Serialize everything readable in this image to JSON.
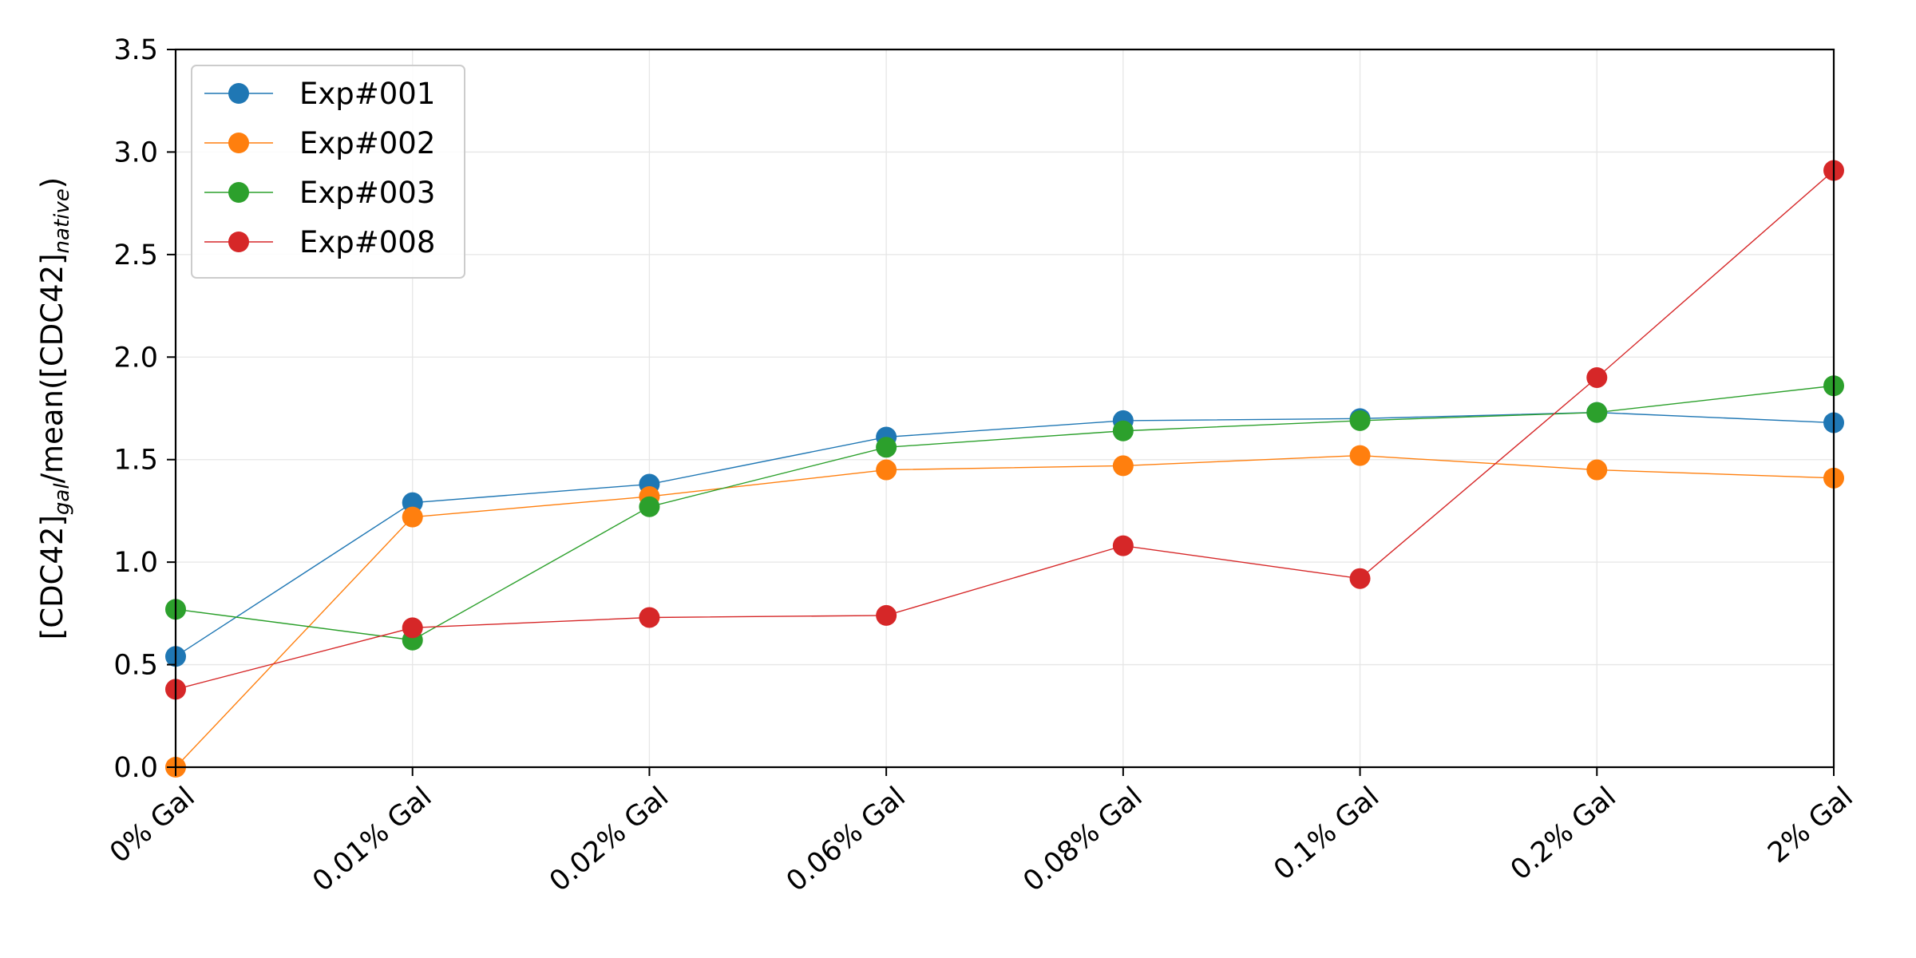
{
  "chart_data": {
    "type": "line",
    "title": "",
    "xlabel": "",
    "ylabel": "[CDC42]gal/mean([CDC42]native)",
    "ylabel_parts": {
      "p1": "[CDC42]",
      "s1": "gal",
      "p2": "/mean([CDC42]",
      "s2": "native",
      "p3": ")"
    },
    "categories": [
      "0% Gal",
      "0.01% Gal",
      "0.02% Gal",
      "0.06% Gal",
      "0.08% Gal",
      "0.1% Gal",
      "0.2% Gal",
      "2% Gal"
    ],
    "ylim": [
      0.0,
      3.5
    ],
    "yticks": [
      "0.0",
      "0.5",
      "1.0",
      "1.5",
      "2.0",
      "2.5",
      "3.0",
      "3.5"
    ],
    "grid": true,
    "legend_position": "top-left",
    "series": [
      {
        "name": "Exp#001",
        "color": "#1f77b4",
        "values": [
          0.54,
          1.29,
          1.38,
          1.61,
          1.69,
          1.7,
          1.73,
          1.68
        ]
      },
      {
        "name": "Exp#002",
        "color": "#ff7f0e",
        "values": [
          0.0,
          1.22,
          1.32,
          1.45,
          1.47,
          1.52,
          1.45,
          1.41
        ]
      },
      {
        "name": "Exp#003",
        "color": "#2ca02c",
        "values": [
          0.77,
          0.62,
          1.27,
          1.56,
          1.64,
          1.69,
          1.73,
          1.86
        ]
      },
      {
        "name": "Exp#008",
        "color": "#d62728",
        "values": [
          0.38,
          0.68,
          0.73,
          0.74,
          1.08,
          0.92,
          1.9,
          2.91
        ]
      }
    ]
  }
}
